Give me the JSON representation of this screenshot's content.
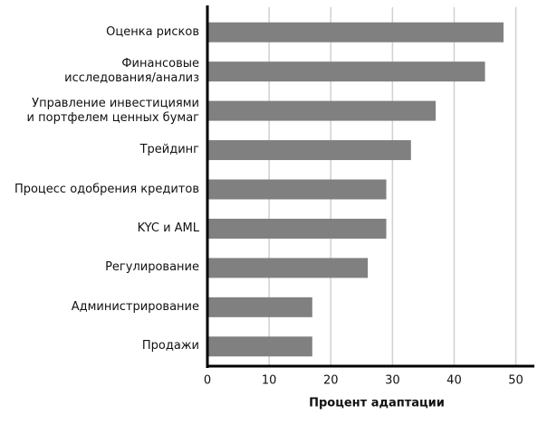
{
  "chart_data": {
    "type": "barh",
    "x_label": "Процент адаптации",
    "categories": [
      "Оценка рисков",
      "Финансовые\nисследования/анализ",
      "Управление инвестициями\nи портфелем ценных бумаг",
      "Трейдинг",
      "Процесс одобрения кредитов",
      "KYC и AML",
      "Регулирование",
      "Администрирование",
      "Продажи"
    ],
    "values": [
      48,
      45,
      37,
      33,
      29,
      29,
      26,
      17,
      17
    ],
    "color": "#808080",
    "xlim": [
      0,
      53
    ],
    "xticks": [
      0,
      10,
      20,
      30,
      40,
      50
    ],
    "grid": true
  }
}
